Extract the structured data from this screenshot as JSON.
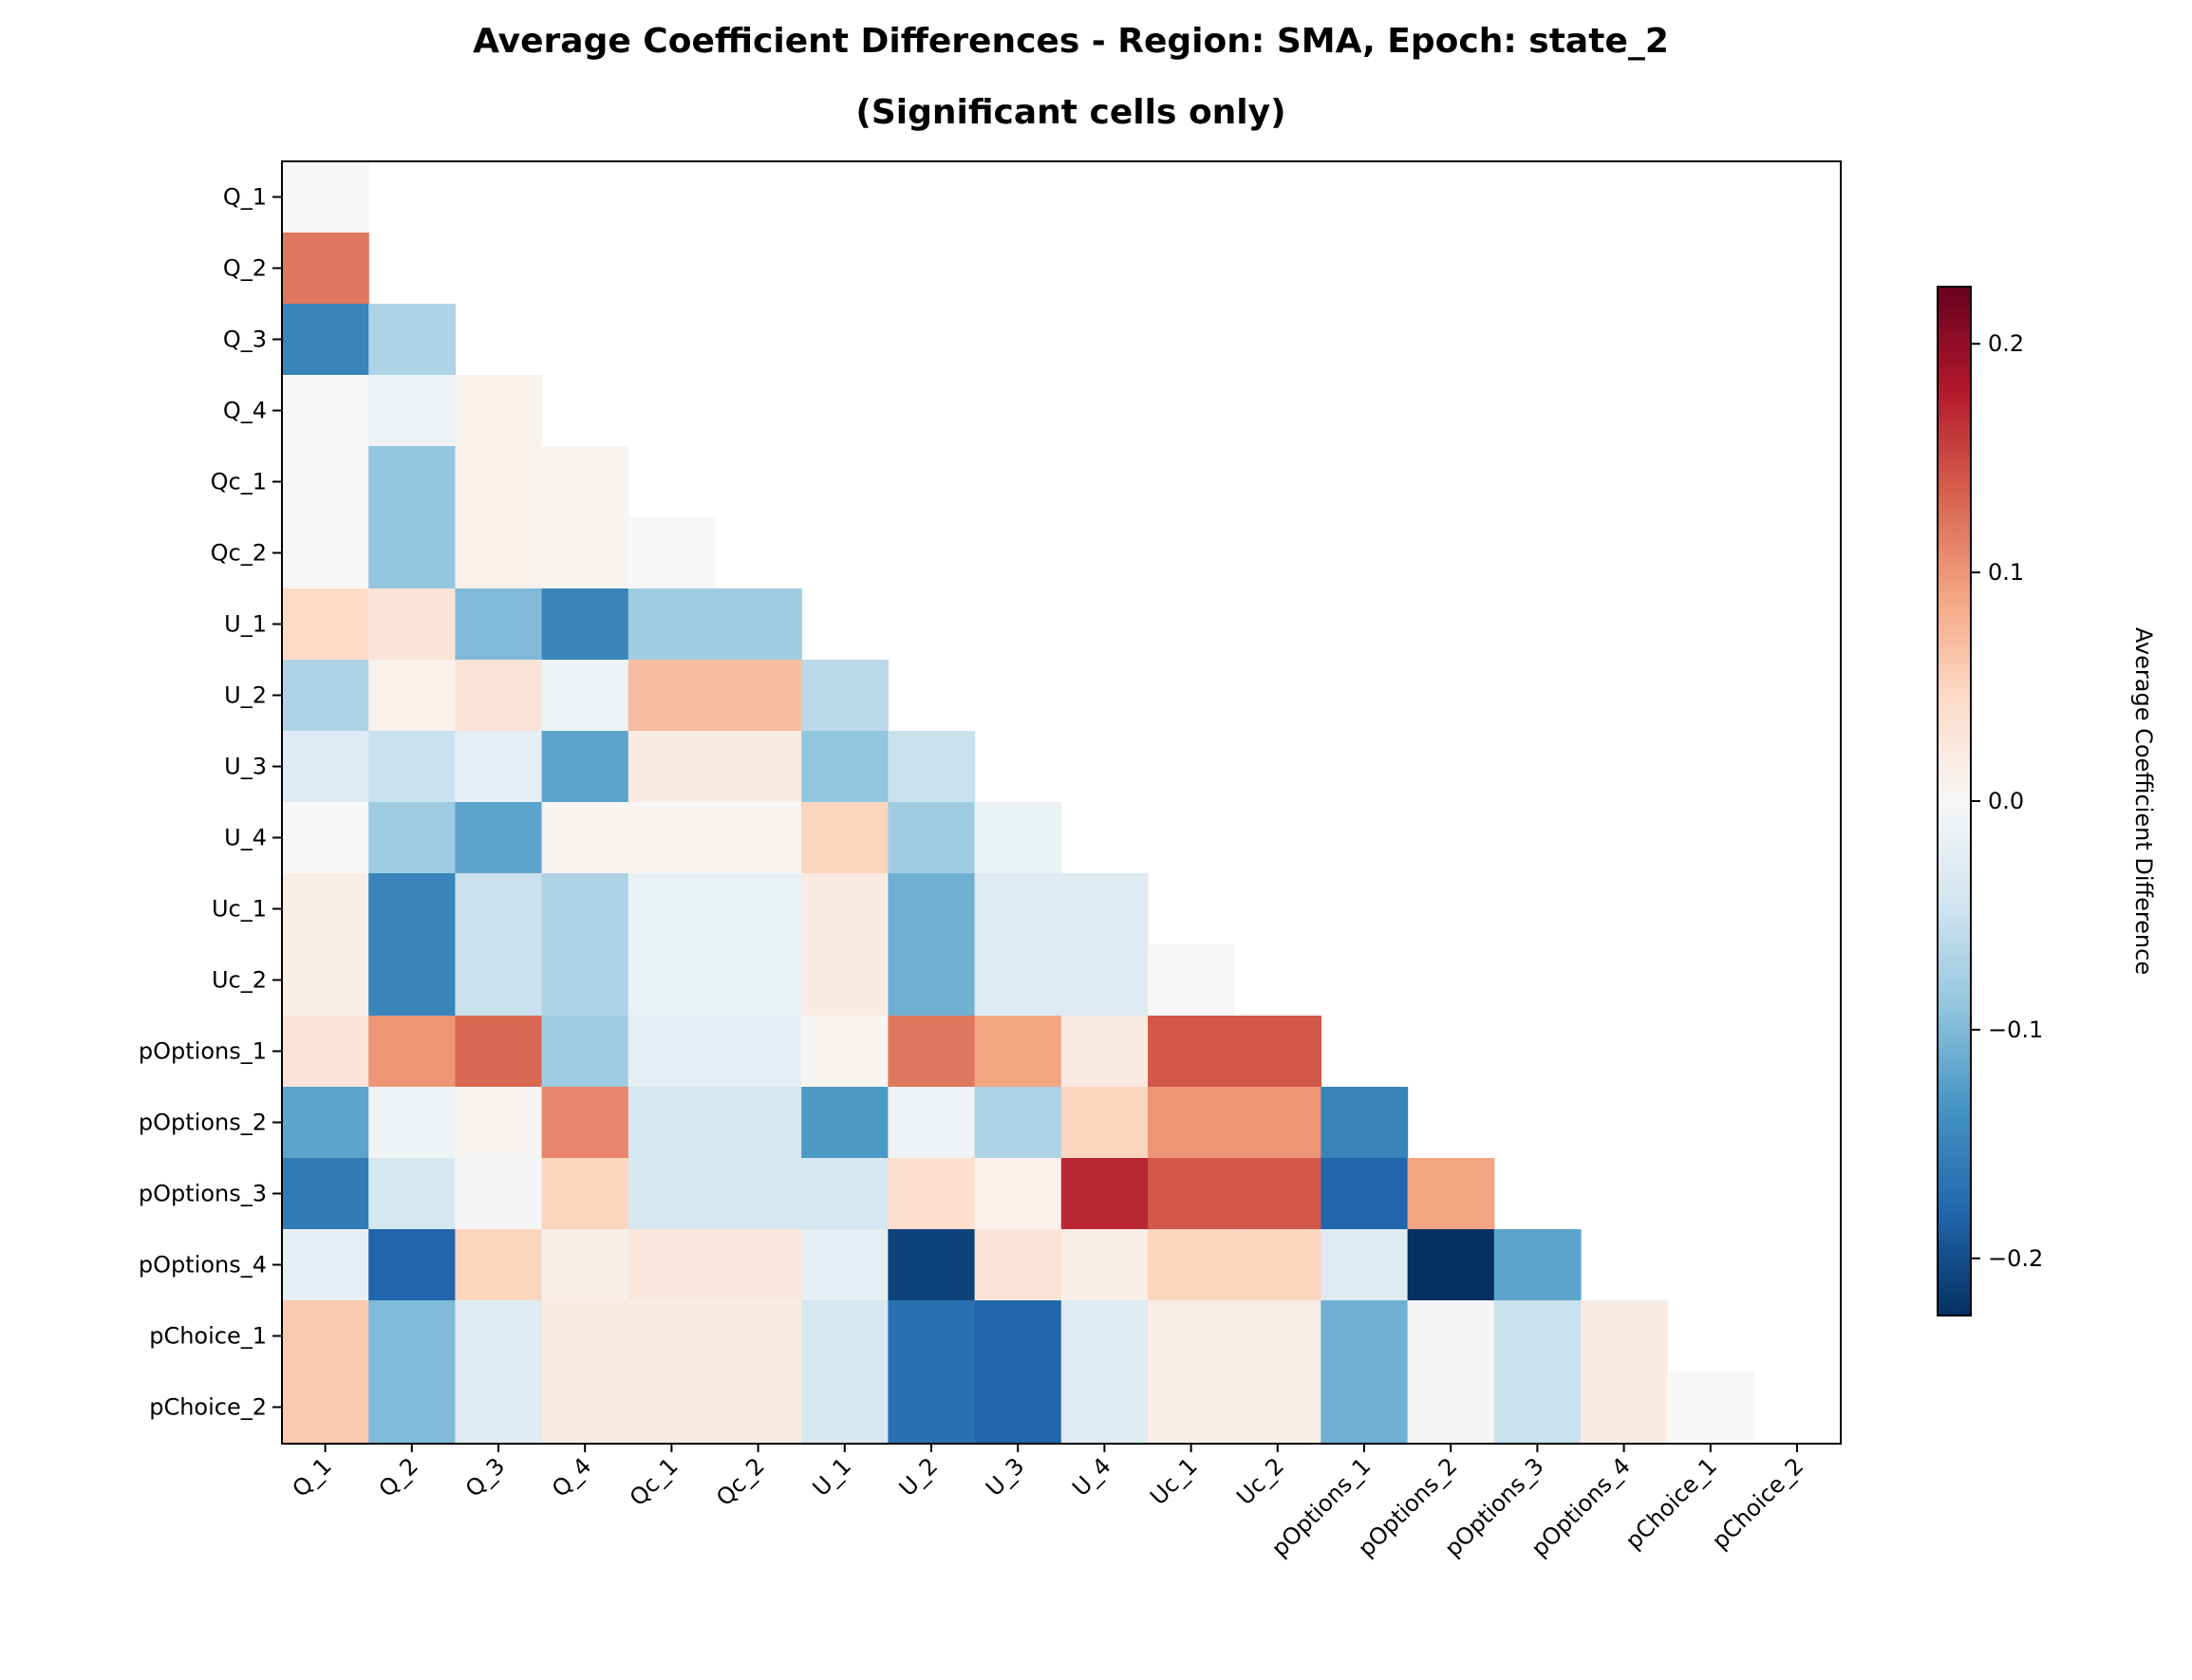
{
  "chart_data": {
    "type": "heatmap",
    "title_lines": [
      "Average Coefficient Differences - Region: SMA, Epoch: state_2",
      "(Significant cells only)"
    ],
    "row_labels": [
      "Q_1",
      "Q_2",
      "Q_3",
      "Q_4",
      "Qc_1",
      "Qc_2",
      "U_1",
      "U_2",
      "U_3",
      "U_4",
      "Uc_1",
      "Uc_2",
      "pOptions_1",
      "pOptions_2",
      "pOptions_3",
      "pOptions_4",
      "pChoice_1",
      "pChoice_2"
    ],
    "col_labels": [
      "Q_1",
      "Q_2",
      "Q_3",
      "Q_4",
      "Qc_1",
      "Qc_2",
      "U_1",
      "U_2",
      "U_3",
      "U_4",
      "Uc_1",
      "Uc_2",
      "pOptions_1",
      "pOptions_2",
      "pOptions_3",
      "pOptions_4",
      "pChoice_1",
      "pChoice_2"
    ],
    "values": [
      [
        0.0
      ],
      [
        0.12,
        null
      ],
      [
        -0.15,
        -0.07
      ],
      [
        0.0,
        -0.01,
        0.01
      ],
      [
        0.0,
        -0.09,
        0.01,
        0.005
      ],
      [
        0.0,
        -0.09,
        0.01,
        0.005,
        0.0
      ],
      [
        0.045,
        0.03,
        -0.1,
        -0.15,
        -0.08,
        -0.08
      ],
      [
        -0.07,
        0.01,
        0.03,
        -0.01,
        0.07,
        0.07,
        -0.06
      ],
      [
        -0.03,
        -0.05,
        -0.02,
        -0.12,
        0.02,
        0.02,
        -0.09,
        -0.05
      ],
      [
        0.0,
        -0.08,
        -0.12,
        0.005,
        0.005,
        0.005,
        0.05,
        -0.08,
        -0.015
      ],
      [
        0.015,
        -0.15,
        -0.05,
        -0.07,
        -0.015,
        -0.015,
        0.02,
        -0.11,
        -0.03,
        -0.03
      ],
      [
        0.015,
        -0.15,
        -0.05,
        -0.07,
        -0.015,
        -0.015,
        0.02,
        -0.11,
        -0.03,
        -0.03,
        0.0
      ],
      [
        0.03,
        0.1,
        0.13,
        -0.08,
        -0.02,
        -0.02,
        0.005,
        0.12,
        0.09,
        0.02,
        0.14,
        0.14
      ],
      [
        -0.12,
        -0.01,
        0.005,
        0.11,
        -0.04,
        -0.04,
        -0.13,
        -0.01,
        -0.07,
        0.05,
        0.1,
        0.1,
        -0.15
      ],
      [
        -0.16,
        -0.04,
        -0.005,
        0.05,
        -0.04,
        -0.04,
        -0.04,
        0.04,
        0.01,
        0.17,
        0.14,
        0.14,
        -0.18,
        0.09
      ],
      [
        -0.02,
        -0.18,
        0.05,
        0.015,
        0.025,
        0.025,
        -0.02,
        -0.21,
        0.03,
        0.015,
        0.05,
        0.05,
        -0.03,
        -0.225,
        -0.12
      ],
      [
        0.06,
        -0.1,
        -0.03,
        0.02,
        0.02,
        0.02,
        -0.04,
        -0.17,
        -0.18,
        -0.03,
        0.015,
        0.015,
        -0.11,
        -0.005,
        -0.05,
        0.02
      ],
      [
        0.06,
        -0.1,
        -0.03,
        0.02,
        0.02,
        0.02,
        -0.04,
        -0.17,
        -0.18,
        -0.03,
        0.015,
        0.015,
        -0.11,
        -0.005,
        -0.05,
        0.02,
        0.0
      ]
    ],
    "colormap": "RdBu_r",
    "vmin": -0.225,
    "vmax": 0.225,
    "mask": "upper triangle and diagonal (shown as blank)",
    "colorbar": {
      "label": "Average Coefficient Difference",
      "ticks": [
        -0.2,
        -0.1,
        0.0,
        0.1,
        0.2
      ],
      "tick_labels": [
        "−0.2",
        "−0.1",
        "0.0",
        "0.1",
        "0.2"
      ]
    },
    "grid": false
  }
}
